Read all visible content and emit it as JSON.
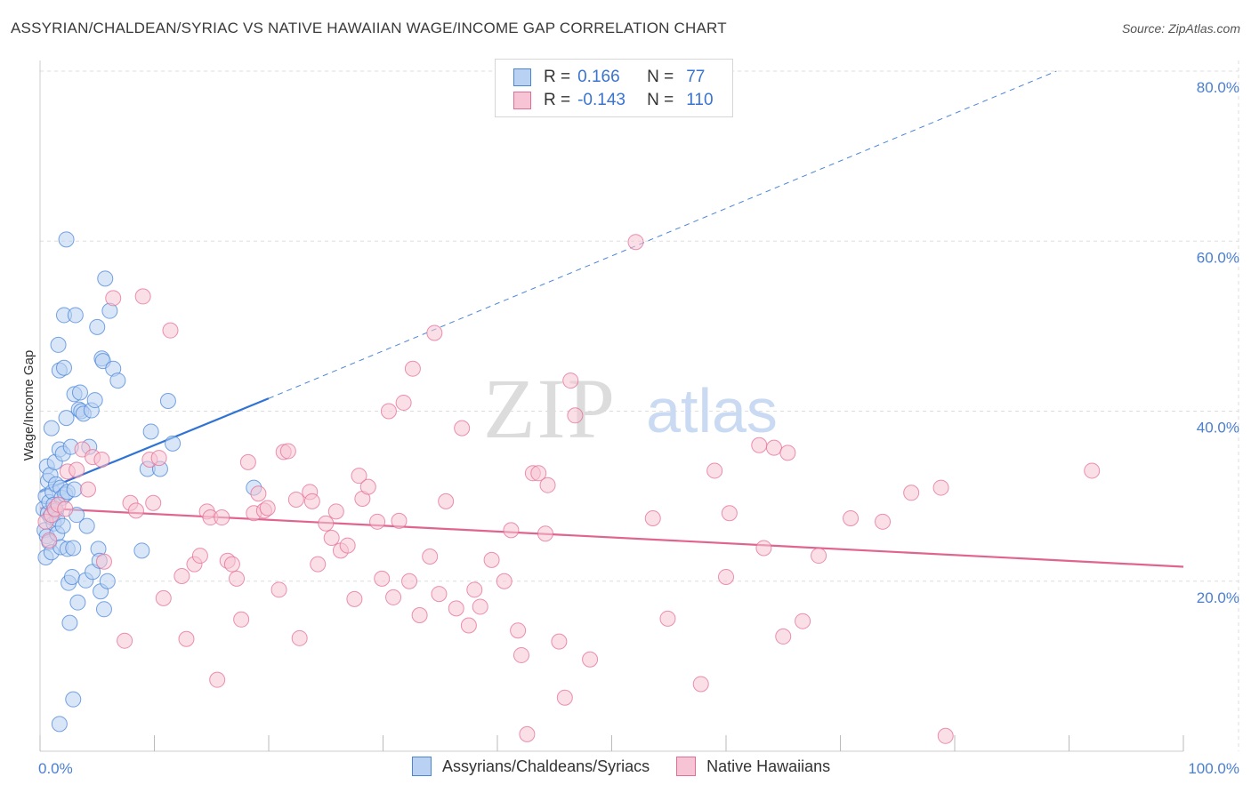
{
  "title": "ASSYRIAN/CHALDEAN/SYRIAC VS NATIVE HAWAIIAN WAGE/INCOME GAP CORRELATION CHART",
  "source": "Source: ZipAtlas.com",
  "watermark": {
    "zip": "ZIP",
    "atlas": "atlas"
  },
  "legend": {
    "rows": [
      {
        "r_label": "R =",
        "r_value": "0.166",
        "n_label": "N =",
        "n_value": "77"
      },
      {
        "r_label": "R =",
        "r_value": "-0.143",
        "n_label": "N =",
        "n_value": "110"
      }
    ]
  },
  "colors": {
    "blue": "#4a86d8",
    "blue_fill": "#b9d2f3",
    "pink": "#e46d96",
    "pink_fill": "#f6c4d4",
    "grid": "#dddddd",
    "tick_text": "#4a7fd0"
  },
  "chart_data": {
    "type": "scatter",
    "title": "ASSYRIAN/CHALDEAN/SYRIAC VS NATIVE HAWAIIAN WAGE/INCOME GAP CORRELATION CHART",
    "xlabel": "",
    "ylabel": "Wage/Income Gap",
    "xlim": [
      0,
      100
    ],
    "ylim": [
      0,
      80
    ],
    "x_tick_labels": [
      "0.0%",
      "100.0%"
    ],
    "y_ticks": [
      20,
      40,
      60,
      80
    ],
    "y_tick_labels": [
      "20.0%",
      "40.0%",
      "60.0%",
      "80.0%"
    ],
    "grid": true,
    "series": [
      {
        "name": "Assyrians/Chaldeans/Syriacs",
        "r": 0.166,
        "n": 77,
        "trend": {
          "x0": 0,
          "y0": 30.5,
          "x1": 20,
          "y1": 41.5,
          "dashed_to_x": 88.9,
          "dashed_to_y": 80
        },
        "points": [
          [
            0.3,
            28.5
          ],
          [
            0.4,
            26.0
          ],
          [
            0.5,
            30.0
          ],
          [
            0.5,
            22.8
          ],
          [
            0.6,
            33.5
          ],
          [
            0.6,
            25.3
          ],
          [
            0.7,
            28.0
          ],
          [
            0.7,
            31.8
          ],
          [
            0.8,
            29.3
          ],
          [
            0.8,
            24.6
          ],
          [
            0.9,
            27.6
          ],
          [
            0.9,
            32.5
          ],
          [
            1.0,
            38.0
          ],
          [
            1.0,
            23.4
          ],
          [
            1.1,
            30.5
          ],
          [
            1.2,
            29.0
          ],
          [
            1.2,
            26.8
          ],
          [
            1.3,
            34.0
          ],
          [
            1.4,
            31.4
          ],
          [
            1.4,
            28.3
          ],
          [
            1.5,
            27.3
          ],
          [
            1.5,
            25.6
          ],
          [
            1.6,
            47.8
          ],
          [
            1.7,
            44.8
          ],
          [
            1.7,
            35.5
          ],
          [
            1.8,
            31.0
          ],
          [
            1.8,
            24.0
          ],
          [
            1.9,
            29.8
          ],
          [
            2.0,
            35.0
          ],
          [
            2.0,
            26.5
          ],
          [
            2.1,
            51.3
          ],
          [
            2.1,
            45.1
          ],
          [
            2.2,
            30.2
          ],
          [
            2.3,
            60.2
          ],
          [
            2.3,
            39.2
          ],
          [
            2.4,
            30.5
          ],
          [
            2.4,
            23.8
          ],
          [
            2.5,
            19.8
          ],
          [
            2.6,
            15.1
          ],
          [
            2.7,
            35.8
          ],
          [
            2.8,
            20.5
          ],
          [
            2.9,
            6.1
          ],
          [
            2.9,
            23.9
          ],
          [
            3.0,
            42.0
          ],
          [
            3.0,
            30.8
          ],
          [
            3.1,
            51.3
          ],
          [
            3.2,
            27.8
          ],
          [
            3.3,
            17.5
          ],
          [
            3.4,
            40.2
          ],
          [
            3.5,
            42.2
          ],
          [
            3.6,
            40.0
          ],
          [
            3.8,
            39.7
          ],
          [
            4.0,
            20.1
          ],
          [
            4.1,
            26.5
          ],
          [
            4.3,
            35.8
          ],
          [
            4.5,
            40.1
          ],
          [
            4.6,
            21.1
          ],
          [
            4.8,
            41.3
          ],
          [
            5.0,
            49.9
          ],
          [
            5.1,
            23.8
          ],
          [
            5.2,
            22.4
          ],
          [
            5.3,
            18.8
          ],
          [
            5.4,
            46.2
          ],
          [
            5.5,
            45.9
          ],
          [
            5.6,
            16.7
          ],
          [
            5.7,
            55.6
          ],
          [
            5.9,
            20.0
          ],
          [
            6.1,
            51.8
          ],
          [
            6.4,
            45.0
          ],
          [
            6.8,
            43.6
          ],
          [
            8.9,
            23.6
          ],
          [
            9.4,
            33.2
          ],
          [
            9.7,
            37.6
          ],
          [
            10.5,
            33.2
          ],
          [
            11.2,
            41.2
          ],
          [
            11.6,
            36.2
          ],
          [
            18.7,
            31.0
          ],
          [
            1.7,
            3.2
          ]
        ]
      },
      {
        "name": "Native Hawaiians",
        "r": -0.143,
        "n": 110,
        "trend": {
          "x0": 0,
          "y0": 28.6,
          "x1": 100,
          "y1": 21.7
        },
        "points": [
          [
            0.5,
            27.0
          ],
          [
            0.8,
            24.8
          ],
          [
            1.0,
            27.8
          ],
          [
            1.3,
            28.5
          ],
          [
            1.6,
            29.0
          ],
          [
            2.2,
            28.5
          ],
          [
            2.4,
            32.9
          ],
          [
            3.2,
            33.1
          ],
          [
            3.7,
            35.5
          ],
          [
            4.2,
            30.8
          ],
          [
            4.6,
            34.6
          ],
          [
            5.4,
            34.3
          ],
          [
            5.6,
            22.3
          ],
          [
            6.4,
            53.3
          ],
          [
            7.4,
            13.0
          ],
          [
            7.9,
            29.2
          ],
          [
            8.4,
            28.3
          ],
          [
            9.0,
            53.5
          ],
          [
            9.6,
            34.3
          ],
          [
            9.9,
            29.2
          ],
          [
            10.4,
            34.5
          ],
          [
            10.8,
            18.0
          ],
          [
            11.4,
            49.5
          ],
          [
            12.4,
            20.6
          ],
          [
            12.8,
            13.2
          ],
          [
            13.5,
            22.0
          ],
          [
            14.0,
            23.0
          ],
          [
            14.6,
            28.2
          ],
          [
            14.9,
            27.5
          ],
          [
            15.5,
            8.4
          ],
          [
            15.9,
            27.5
          ],
          [
            16.4,
            22.4
          ],
          [
            16.8,
            22.0
          ],
          [
            17.2,
            20.3
          ],
          [
            17.6,
            15.5
          ],
          [
            18.2,
            34.0
          ],
          [
            18.7,
            28.0
          ],
          [
            19.1,
            30.3
          ],
          [
            19.6,
            28.3
          ],
          [
            19.9,
            28.6
          ],
          [
            20.9,
            19.0
          ],
          [
            21.3,
            35.2
          ],
          [
            21.7,
            35.3
          ],
          [
            22.4,
            29.6
          ],
          [
            22.7,
            13.3
          ],
          [
            23.6,
            30.5
          ],
          [
            23.8,
            29.4
          ],
          [
            24.3,
            22.0
          ],
          [
            25.0,
            26.8
          ],
          [
            25.5,
            25.1
          ],
          [
            25.9,
            28.2
          ],
          [
            26.3,
            23.6
          ],
          [
            26.9,
            24.2
          ],
          [
            27.5,
            17.9
          ],
          [
            27.9,
            32.4
          ],
          [
            28.2,
            29.7
          ],
          [
            28.7,
            31.1
          ],
          [
            29.5,
            27.0
          ],
          [
            29.9,
            20.3
          ],
          [
            30.5,
            40.0
          ],
          [
            30.9,
            18.1
          ],
          [
            31.4,
            27.1
          ],
          [
            31.8,
            41.0
          ],
          [
            32.3,
            20.0
          ],
          [
            32.6,
            45.0
          ],
          [
            33.2,
            16.0
          ],
          [
            34.1,
            22.9
          ],
          [
            34.5,
            49.2
          ],
          [
            34.9,
            18.5
          ],
          [
            35.5,
            29.4
          ],
          [
            36.4,
            16.8
          ],
          [
            36.9,
            38.0
          ],
          [
            37.5,
            14.8
          ],
          [
            38.0,
            19.0
          ],
          [
            38.5,
            17.0
          ],
          [
            39.5,
            22.5
          ],
          [
            40.6,
            20.0
          ],
          [
            41.2,
            26.0
          ],
          [
            41.8,
            14.2
          ],
          [
            42.1,
            11.3
          ],
          [
            42.6,
            2.0
          ],
          [
            43.1,
            32.7
          ],
          [
            43.6,
            32.7
          ],
          [
            44.2,
            25.6
          ],
          [
            44.4,
            31.3
          ],
          [
            45.4,
            12.9
          ],
          [
            45.9,
            6.3
          ],
          [
            46.4,
            43.6
          ],
          [
            46.8,
            39.5
          ],
          [
            48.1,
            10.8
          ],
          [
            52.1,
            59.9
          ],
          [
            53.6,
            27.4
          ],
          [
            54.9,
            15.6
          ],
          [
            57.8,
            7.9
          ],
          [
            59.0,
            33.0
          ],
          [
            60.0,
            20.5
          ],
          [
            60.3,
            28.0
          ],
          [
            62.9,
            36.0
          ],
          [
            63.3,
            23.9
          ],
          [
            64.2,
            35.7
          ],
          [
            65.0,
            13.5
          ],
          [
            65.4,
            35.1
          ],
          [
            66.7,
            15.3
          ],
          [
            68.1,
            23.0
          ],
          [
            70.9,
            27.4
          ],
          [
            73.7,
            27.0
          ],
          [
            76.2,
            30.4
          ],
          [
            78.8,
            31.0
          ],
          [
            79.2,
            1.8
          ],
          [
            92.0,
            33.0
          ]
        ]
      }
    ]
  },
  "bottom_legend": [
    "Assyrians/Chaldeans/Syriacs",
    "Native Hawaiians"
  ]
}
